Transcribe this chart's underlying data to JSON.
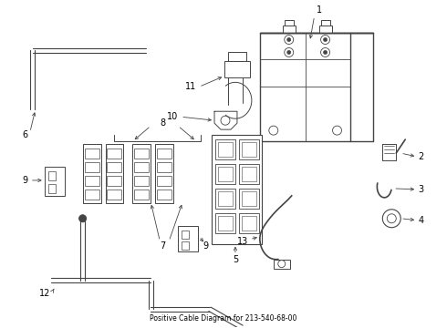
{
  "title": "Positive Cable Diagram for 213-540-68-00",
  "background_color": "#ffffff",
  "line_color": "#444444",
  "label_color": "#000000",
  "figsize": [
    4.9,
    3.6
  ],
  "dpi": 100
}
